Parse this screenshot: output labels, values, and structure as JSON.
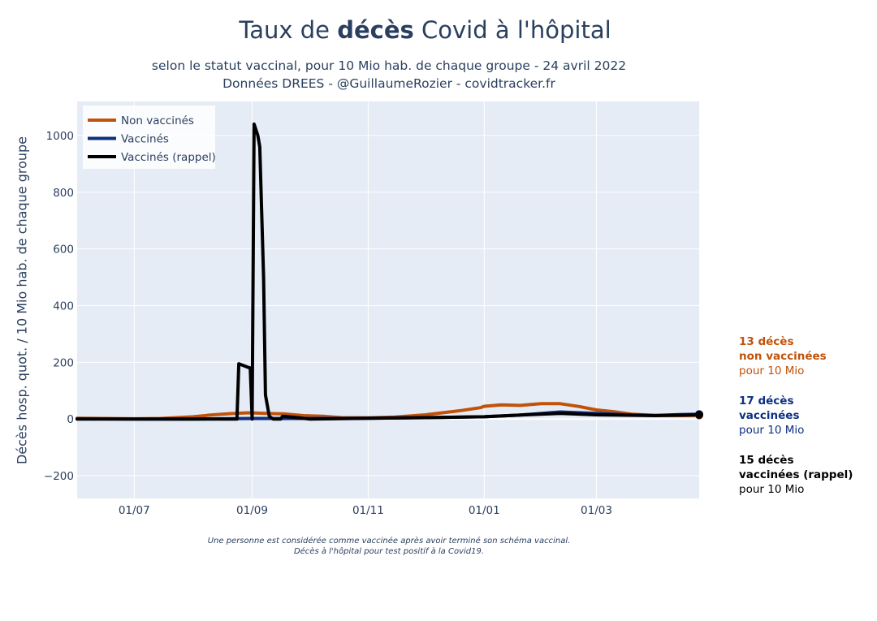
{
  "header": {
    "title_pre": "Taux de ",
    "title_bold": "décès",
    "title_post": " Covid à l'hôpital",
    "subtitle_line1": "selon le statut vaccinal, pour 10 Mio hab. de chaque groupe - 24 avril 2022",
    "subtitle_line2": "Données DREES - @GuillaumeRozier - covidtracker.fr"
  },
  "footnote": {
    "line1": "Une personne est considérée comme vaccinée après avoir terminé son schéma vaccinal.",
    "line2": "Décès à l'hôpital pour test positif à la Covid19."
  },
  "annotations": [
    {
      "line1": "13 décès",
      "line2": "non vaccinées",
      "line3": "pour 10 Mio"
    },
    {
      "line1": "17 décès",
      "line2": "vaccinées",
      "line3": "pour 10 Mio"
    },
    {
      "line1": "15 décès",
      "line2": "vaccinées (rappel)",
      "line3": "pour 10 Mio"
    }
  ],
  "colors": {
    "non_vaccines": "#c1520a",
    "vaccines": "#0c2f7f",
    "rappel": "#000000",
    "plot_bg": "#e5ecf6",
    "grid": "#ffffff",
    "text": "#2a3f5f"
  },
  "chart_data": {
    "type": "line",
    "title": "Taux de décès Covid à l'hôpital",
    "ylabel": "Décès hosp. quot. / 10 Mio hab. de chaque groupe",
    "xlabel": "",
    "xlim": [
      "2021-06-01",
      "2022-04-24"
    ],
    "ylim": [
      -280,
      1120
    ],
    "yticks": [
      -200,
      0,
      200,
      400,
      600,
      800,
      1000
    ],
    "ytick_labels": [
      "−200",
      "0",
      "200",
      "400",
      "600",
      "800",
      "1000"
    ],
    "xticks": [
      "2021-07-01",
      "2021-09-01",
      "2021-11-01",
      "2022-01-01",
      "2022-03-01"
    ],
    "xtick_labels": [
      "01/07",
      "01/09",
      "01/11",
      "01/01",
      "01/03"
    ],
    "grid": true,
    "legend_position": "top-left",
    "series": [
      {
        "name": "Non vaccinés",
        "color": "#c1520a",
        "points": [
          [
            "2021-06-01",
            3
          ],
          [
            "2021-06-15",
            2
          ],
          [
            "2021-07-01",
            1
          ],
          [
            "2021-07-15",
            2
          ],
          [
            "2021-08-01",
            8
          ],
          [
            "2021-08-10",
            14
          ],
          [
            "2021-08-20",
            19
          ],
          [
            "2021-08-30",
            22
          ],
          [
            "2021-09-08",
            20
          ],
          [
            "2021-09-18",
            18
          ],
          [
            "2021-09-28",
            12
          ],
          [
            "2021-10-08",
            10
          ],
          [
            "2021-10-18",
            5
          ],
          [
            "2021-11-01",
            4
          ],
          [
            "2021-11-15",
            7
          ],
          [
            "2021-12-01",
            15
          ],
          [
            "2021-12-10",
            22
          ],
          [
            "2021-12-20",
            30
          ],
          [
            "2021-12-30",
            40
          ],
          [
            "2022-01-01",
            45
          ],
          [
            "2022-01-10",
            50
          ],
          [
            "2022-01-20",
            48
          ],
          [
            "2022-01-31",
            54
          ],
          [
            "2022-02-10",
            54
          ],
          [
            "2022-02-20",
            44
          ],
          [
            "2022-03-01",
            32
          ],
          [
            "2022-03-10",
            26
          ],
          [
            "2022-03-20",
            17
          ],
          [
            "2022-04-01",
            13
          ],
          [
            "2022-04-15",
            12
          ],
          [
            "2022-04-24",
            13
          ]
        ]
      },
      {
        "name": "Vaccinés",
        "color": "#0c2f7f",
        "points": [
          [
            "2021-06-01",
            1
          ],
          [
            "2021-07-01",
            0
          ],
          [
            "2021-08-01",
            0
          ],
          [
            "2021-09-01",
            2
          ],
          [
            "2021-10-01",
            2
          ],
          [
            "2021-11-01",
            3
          ],
          [
            "2021-12-01",
            5
          ],
          [
            "2022-01-01",
            8
          ],
          [
            "2022-01-20",
            14
          ],
          [
            "2022-02-10",
            25
          ],
          [
            "2022-03-01",
            20
          ],
          [
            "2022-03-20",
            14
          ],
          [
            "2022-04-01",
            13
          ],
          [
            "2022-04-15",
            16
          ],
          [
            "2022-04-24",
            17
          ]
        ]
      },
      {
        "name": "Vaccinés (rappel)",
        "color": "#000000",
        "points": [
          [
            "2021-06-01",
            0
          ],
          [
            "2021-07-01",
            0
          ],
          [
            "2021-08-01",
            0
          ],
          [
            "2021-08-24",
            0
          ],
          [
            "2021-08-25",
            195
          ],
          [
            "2021-08-30",
            182
          ],
          [
            "2021-08-31",
            180
          ],
          [
            "2021-09-01",
            0
          ],
          [
            "2021-09-02",
            1040
          ],
          [
            "2021-09-04",
            1000
          ],
          [
            "2021-09-05",
            960
          ],
          [
            "2021-09-07",
            500
          ],
          [
            "2021-09-08",
            85
          ],
          [
            "2021-09-10",
            10
          ],
          [
            "2021-09-12",
            0
          ],
          [
            "2021-09-16",
            0
          ],
          [
            "2021-09-17",
            10
          ],
          [
            "2021-09-25",
            5
          ],
          [
            "2021-10-01",
            0
          ],
          [
            "2021-11-01",
            3
          ],
          [
            "2021-12-01",
            5
          ],
          [
            "2022-01-01",
            8
          ],
          [
            "2022-01-20",
            14
          ],
          [
            "2022-02-10",
            20
          ],
          [
            "2022-03-01",
            15
          ],
          [
            "2022-04-01",
            12
          ],
          [
            "2022-04-24",
            15
          ]
        ]
      }
    ]
  }
}
